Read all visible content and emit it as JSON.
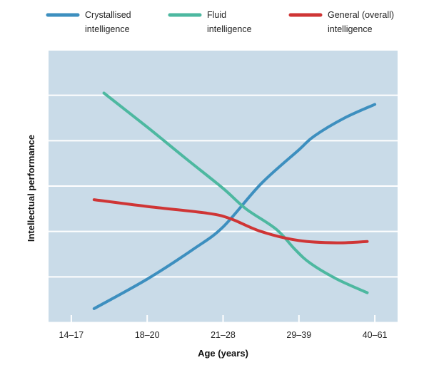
{
  "chart_data": {
    "type": "line",
    "title": "",
    "xlabel": "Age (years)",
    "ylabel": "Intellectual performance",
    "categories": [
      "14–17",
      "18–20",
      "21–28",
      "29–39",
      "40–61"
    ],
    "x_index_range": [
      -0.3,
      4.3
    ],
    "ylim": [
      0,
      6
    ],
    "y_tick_count": 6,
    "y_tick_labels_shown": false,
    "grid": true,
    "legend_position": "top",
    "background_color": "#c9dbe8",
    "grid_color": "#ffffff",
    "series": [
      {
        "name_lines": [
          "Crystallised",
          "intelligence"
        ],
        "color": "#3d8fbf",
        "points": [
          [
            0.3,
            0.3
          ],
          [
            1.0,
            0.95
          ],
          [
            1.6,
            1.6
          ],
          [
            2.0,
            2.1
          ],
          [
            2.5,
            3.05
          ],
          [
            3.0,
            3.8
          ],
          [
            3.2,
            4.1
          ],
          [
            3.6,
            4.5
          ],
          [
            4.0,
            4.8
          ]
        ]
      },
      {
        "name_lines": [
          "Fluid",
          "intelligence"
        ],
        "color": "#4db8a0",
        "points": [
          [
            0.43,
            5.05
          ],
          [
            1.0,
            4.3
          ],
          [
            1.5,
            3.62
          ],
          [
            2.0,
            2.95
          ],
          [
            2.3,
            2.5
          ],
          [
            2.7,
            2.05
          ],
          [
            2.95,
            1.6
          ],
          [
            3.15,
            1.3
          ],
          [
            3.5,
            0.95
          ],
          [
            3.9,
            0.65
          ]
        ]
      },
      {
        "name_lines": [
          "General (overall)",
          "intelligence"
        ],
        "color": "#cf3535",
        "points": [
          [
            0.3,
            2.7
          ],
          [
            1.0,
            2.55
          ],
          [
            1.8,
            2.4
          ],
          [
            2.1,
            2.28
          ],
          [
            2.5,
            2.0
          ],
          [
            3.0,
            1.8
          ],
          [
            3.5,
            1.75
          ],
          [
            3.9,
            1.78
          ]
        ]
      }
    ]
  }
}
